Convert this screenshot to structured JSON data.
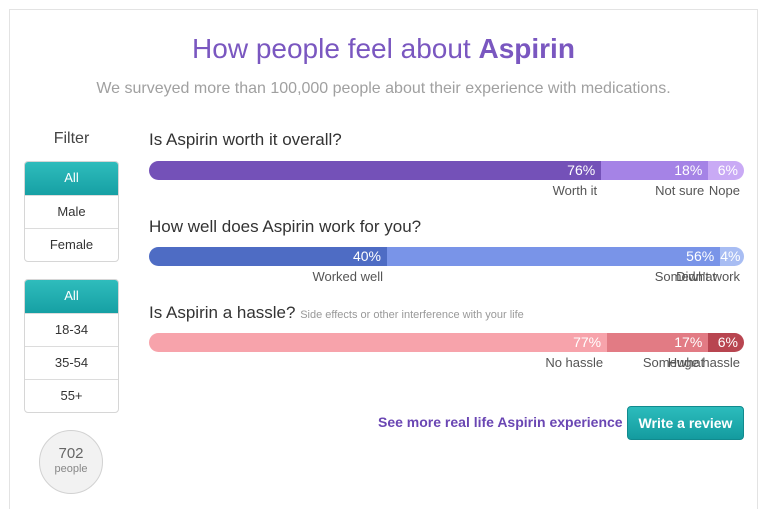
{
  "header": {
    "title_prefix": "How people feel about",
    "drug": "Aspirin",
    "subtitle": "We surveyed more than 100,000 people about their experience with medications."
  },
  "filters": {
    "label": "Filter",
    "gender": [
      "All",
      "Male",
      "Female"
    ],
    "age": [
      "All",
      "18-34",
      "35-54",
      "55+"
    ],
    "people_count": "702",
    "people_label": "people"
  },
  "questions": [
    {
      "text": "Is Aspirin worth it overall?",
      "note": "",
      "segments": [
        {
          "percent": 76,
          "label": "Worth it",
          "color": "#7451b8"
        },
        {
          "percent": 18,
          "label": "Not sure",
          "color": "#a583e6"
        },
        {
          "percent": 6,
          "label": "Nope",
          "color": "#c9aaf5"
        }
      ]
    },
    {
      "text": "How well does Aspirin work for you?",
      "note": "",
      "segments": [
        {
          "percent": 40,
          "label": "Worked well",
          "color": "#4e6cc4"
        },
        {
          "percent": 56,
          "label": "Somewhat",
          "color": "#7994e8"
        },
        {
          "percent": 4,
          "label": "Didn't work",
          "color": "#a8bdf3"
        }
      ]
    },
    {
      "text": "Is Aspirin a hassle?",
      "note": "Side effects or other interference with your life",
      "segments": [
        {
          "percent": 77,
          "label": "No hassle",
          "color": "#f7a3ab"
        },
        {
          "percent": 17,
          "label": "Somewhat",
          "color": "#e27b84"
        },
        {
          "percent": 6,
          "label": "Huge hassle",
          "color": "#b84550"
        }
      ]
    }
  ],
  "actions": {
    "more_link": "See more real life Aspirin experience",
    "write_review": "Write a review"
  }
}
